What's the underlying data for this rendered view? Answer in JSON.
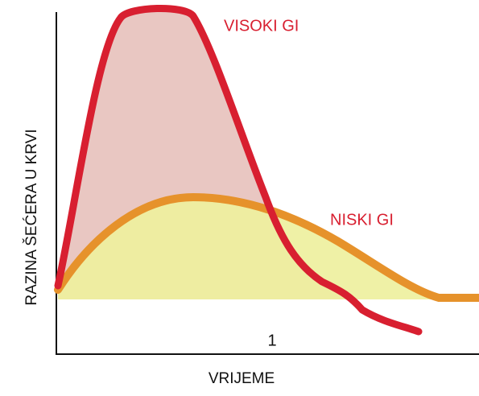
{
  "labels": {
    "high": "VISOKI GI",
    "low": "NISKI GI",
    "y_axis": "RAZINA ŠEĆERA U KRVI",
    "x_axis": "VRIJEME",
    "x_marker": "1"
  }
}
